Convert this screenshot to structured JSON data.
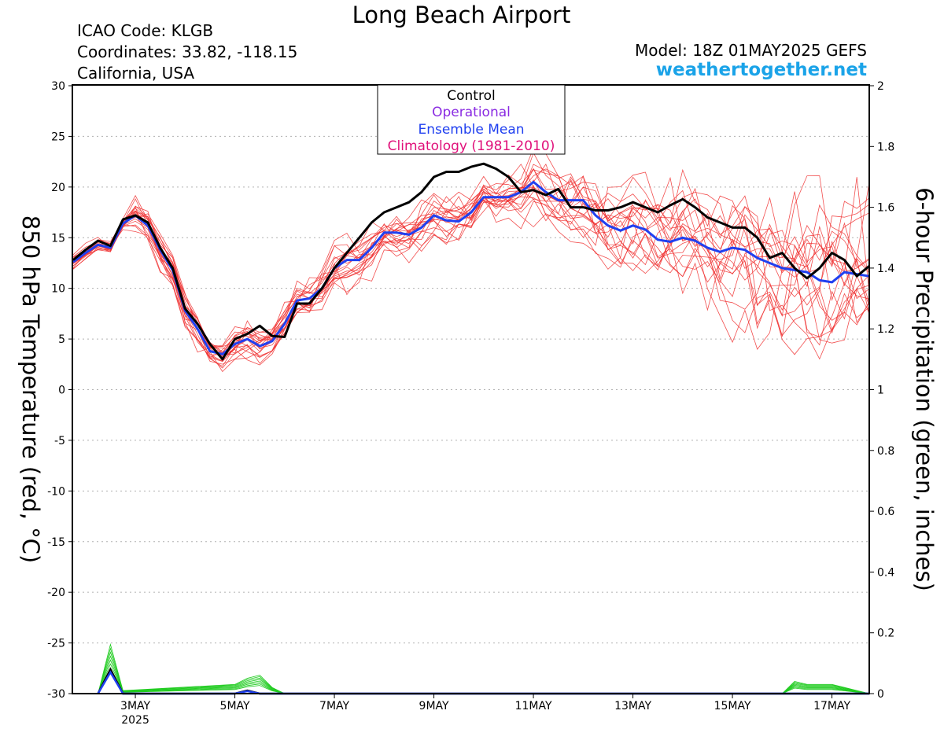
{
  "title": "Long Beach Airport",
  "info": {
    "icao": "ICAO Code: KLGB",
    "coords": "Coordinates: 33.82, -118.15",
    "region": "California, USA",
    "model": "Model: 18Z 01MAY2025 GEFS",
    "site": "weathertogether.net"
  },
  "legend": {
    "control": "Control",
    "operational": "Operational",
    "ensemble_mean": "Ensemble Mean",
    "climatology": "Climatology (1981-2010)"
  },
  "colors": {
    "control": "#000000",
    "operational": "#8a2be2",
    "ensemble_mean": "#2040f0",
    "climatology": "#e0107a",
    "members": "#f03030",
    "precip": "#22cc22",
    "site": "#1aa3e8"
  },
  "chart_data": {
    "type": "line",
    "x_unit": "days since 01 May 2025 00Z",
    "xlim": [
      0.75,
      16.75
    ],
    "x_ticks": [
      {
        "x": 2,
        "label": "3MAY",
        "sub": "2025"
      },
      {
        "x": 4,
        "label": "5MAY"
      },
      {
        "x": 6,
        "label": "7MAY"
      },
      {
        "x": 8,
        "label": "9MAY"
      },
      {
        "x": 10,
        "label": "11MAY"
      },
      {
        "x": 12,
        "label": "13MAY"
      },
      {
        "x": 14,
        "label": "15MAY"
      },
      {
        "x": 16,
        "label": "17MAY"
      }
    ],
    "ylabel_left": "850 hPa Temperature (red, °C)",
    "ylabel_right": "6-hour Precipitation (green, inches)",
    "ylim_left": [
      -30,
      30
    ],
    "yticks_left": [
      30,
      25,
      20,
      15,
      10,
      5,
      0,
      -5,
      -10,
      -15,
      -20,
      -25,
      -30
    ],
    "ylim_right": [
      0,
      2
    ],
    "yticks_right": [
      "2",
      "1.8",
      "1.6",
      "1.4",
      "1.2",
      "1",
      "0.8",
      "0.6",
      "0.4",
      "0.2",
      "0"
    ],
    "grid": true,
    "temperature": {
      "control": [
        [
          0.75,
          12.8
        ],
        [
          1,
          13.8
        ],
        [
          1.25,
          14.7
        ],
        [
          1.5,
          14.2
        ],
        [
          1.75,
          16.8
        ],
        [
          2,
          17.2
        ],
        [
          2.25,
          16.5
        ],
        [
          2.5,
          14
        ],
        [
          2.75,
          12
        ],
        [
          3,
          8
        ],
        [
          3.25,
          6.5
        ],
        [
          3.5,
          4.5
        ],
        [
          3.75,
          3
        ],
        [
          4,
          5
        ],
        [
          4.25,
          5.5
        ],
        [
          4.5,
          6.3
        ],
        [
          4.75,
          5.3
        ],
        [
          5,
          5.2
        ],
        [
          5.25,
          8.5
        ],
        [
          5.5,
          8.5
        ],
        [
          5.75,
          10
        ],
        [
          6,
          12
        ],
        [
          6.25,
          13.5
        ],
        [
          6.5,
          15
        ],
        [
          6.75,
          16.5
        ],
        [
          7,
          17.5
        ],
        [
          7.25,
          18
        ],
        [
          7.5,
          18.5
        ],
        [
          7.75,
          19.5
        ],
        [
          8,
          21
        ],
        [
          8.25,
          21.5
        ],
        [
          8.5,
          21.5
        ],
        [
          8.75,
          22
        ],
        [
          9,
          22.3
        ],
        [
          9.25,
          21.8
        ],
        [
          9.5,
          21
        ],
        [
          9.75,
          19.5
        ],
        [
          10,
          19.7
        ],
        [
          10.25,
          19.2
        ],
        [
          10.5,
          19.8
        ],
        [
          10.75,
          18
        ],
        [
          11,
          18
        ],
        [
          11.25,
          17.7
        ],
        [
          11.5,
          17.7
        ],
        [
          11.75,
          18
        ],
        [
          12,
          18.5
        ],
        [
          12.25,
          18
        ],
        [
          12.5,
          17.5
        ],
        [
          12.75,
          18.2
        ],
        [
          13,
          18.8
        ],
        [
          13.25,
          18
        ],
        [
          13.5,
          17
        ],
        [
          13.75,
          16.5
        ],
        [
          14,
          16
        ],
        [
          14.25,
          16
        ],
        [
          14.5,
          15
        ],
        [
          14.75,
          13
        ],
        [
          15,
          13.5
        ],
        [
          15.25,
          12
        ],
        [
          15.5,
          11
        ],
        [
          15.75,
          12
        ],
        [
          16,
          13.5
        ],
        [
          16.25,
          12.8
        ],
        [
          16.5,
          11.2
        ],
        [
          16.75,
          12.2
        ]
      ],
      "ensemble_mean": [
        [
          0.75,
          12.6
        ],
        [
          1,
          13.5
        ],
        [
          1.25,
          14.3
        ],
        [
          1.5,
          14
        ],
        [
          1.75,
          16.4
        ],
        [
          2,
          17.2
        ],
        [
          2.25,
          16.2
        ],
        [
          2.5,
          13.8
        ],
        [
          2.75,
          11.8
        ],
        [
          3,
          7.8
        ],
        [
          3.25,
          6
        ],
        [
          3.5,
          3.8
        ],
        [
          3.75,
          3.5
        ],
        [
          4,
          4.5
        ],
        [
          4.25,
          5
        ],
        [
          4.5,
          4.3
        ],
        [
          4.75,
          4.8
        ],
        [
          5,
          6.5
        ],
        [
          5.25,
          8.8
        ],
        [
          5.5,
          9
        ],
        [
          5.75,
          10
        ],
        [
          6,
          12
        ],
        [
          6.25,
          12.8
        ],
        [
          6.5,
          12.8
        ],
        [
          6.75,
          14
        ],
        [
          7,
          15.5
        ],
        [
          7.25,
          15.5
        ],
        [
          7.5,
          15.3
        ],
        [
          7.75,
          16
        ],
        [
          8,
          17.2
        ],
        [
          8.25,
          16.7
        ],
        [
          8.5,
          16.6
        ],
        [
          8.75,
          17.5
        ],
        [
          9,
          19
        ],
        [
          9.25,
          19
        ],
        [
          9.5,
          19
        ],
        [
          9.75,
          19.5
        ],
        [
          10,
          20.5
        ],
        [
          10.25,
          19.5
        ],
        [
          10.5,
          18.7
        ],
        [
          10.75,
          18.7
        ],
        [
          11,
          18.7
        ],
        [
          11.25,
          17.2
        ],
        [
          11.5,
          16.2
        ],
        [
          11.75,
          15.7
        ],
        [
          12,
          16.2
        ],
        [
          12.25,
          15.8
        ],
        [
          12.5,
          14.8
        ],
        [
          12.75,
          14.6
        ],
        [
          13,
          15
        ],
        [
          13.25,
          14.7
        ],
        [
          13.5,
          14
        ],
        [
          13.75,
          13.6
        ],
        [
          14,
          14
        ],
        [
          14.25,
          13.8
        ],
        [
          14.5,
          13
        ],
        [
          14.75,
          12.5
        ],
        [
          15,
          12
        ],
        [
          15.25,
          11.8
        ],
        [
          15.5,
          11.6
        ],
        [
          15.75,
          10.8
        ],
        [
          16,
          10.6
        ],
        [
          16.25,
          11.6
        ],
        [
          16.5,
          11.4
        ],
        [
          16.75,
          11.2
        ]
      ],
      "members_count": 20,
      "members_range_late": [
        3,
        23
      ]
    },
    "precipitation": {
      "control": [
        [
          1.25,
          0
        ],
        [
          1.5,
          0.08
        ],
        [
          1.75,
          0
        ],
        [
          4,
          0
        ],
        [
          4.25,
          0.01
        ],
        [
          4.5,
          0
        ],
        [
          16.75,
          0
        ]
      ],
      "ensemble_mean": [
        [
          1.25,
          0
        ],
        [
          1.5,
          0.07
        ],
        [
          1.75,
          0
        ],
        [
          4,
          0
        ],
        [
          4.25,
          0.008
        ],
        [
          4.5,
          0
        ],
        [
          16.75,
          0
        ]
      ],
      "members_max": [
        [
          1.25,
          0
        ],
        [
          1.5,
          0.16
        ],
        [
          1.75,
          0.01
        ],
        [
          4,
          0.03
        ],
        [
          4.25,
          0.05
        ],
        [
          4.5,
          0.06
        ],
        [
          4.75,
          0.02
        ],
        [
          5,
          0
        ],
        [
          15,
          0
        ],
        [
          15.25,
          0.04
        ],
        [
          15.5,
          0.03
        ],
        [
          16,
          0.03
        ],
        [
          16.25,
          0.02
        ],
        [
          16.75,
          0
        ]
      ]
    }
  }
}
